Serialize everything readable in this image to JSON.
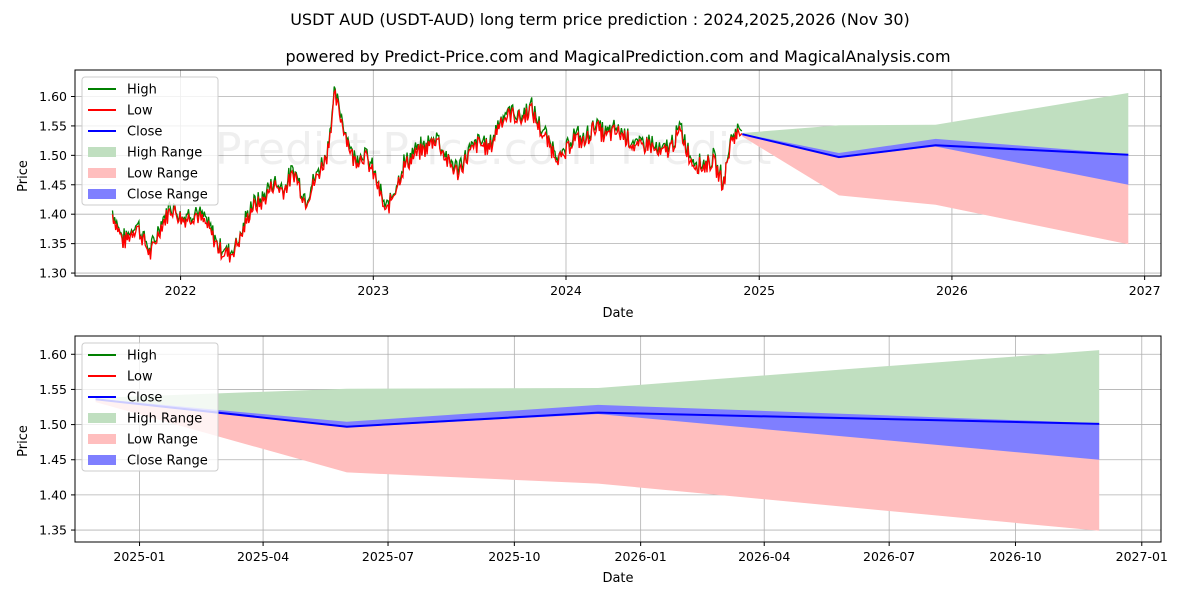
{
  "page": {
    "title": "USDT AUD (USDT-AUD) long term price prediction : 2024,2025,2026 (Nov 30)",
    "subtitle": "powered by Predict-Price.com and MagicalPrediction.com and MagicalAnalysis.com",
    "watermark": "Predict-Price.com"
  },
  "colors": {
    "high": "#008000",
    "low": "#ff0000",
    "close": "#0000ff",
    "high_range": "#c0dfc0",
    "low_range": "#ffbebe",
    "close_range": "#7f7fff"
  },
  "chart_data": [
    {
      "type": "line",
      "panel": "top",
      "title": "USDT AUD (USDT-AUD) long term price prediction : 2024,2025,2026 (Nov 30)",
      "xlabel": "Date",
      "ylabel": "Price",
      "xlim": [
        "2021-06-15",
        "2027-02-01"
      ],
      "ylim": [
        1.295,
        1.645
      ],
      "xticks": [
        "2022",
        "2023",
        "2024",
        "2025",
        "2026",
        "2027"
      ],
      "yticks": [
        "1.30",
        "1.35",
        "1.40",
        "1.45",
        "1.50",
        "1.55",
        "1.60"
      ],
      "grid": true,
      "legend_position": "top-left",
      "legend": [
        "High",
        "Low",
        "Close",
        "High Range",
        "Low Range",
        "Close Range"
      ],
      "history_keypoints": {
        "dates": [
          "2021-08-25",
          "2021-09-15",
          "2021-10-10",
          "2021-11-05",
          "2021-11-25",
          "2021-12-15",
          "2022-01-05",
          "2022-01-30",
          "2022-02-20",
          "2022-03-15",
          "2022-04-05",
          "2022-04-25",
          "2022-05-15",
          "2022-06-05",
          "2022-06-25",
          "2022-07-15",
          "2022-08-05",
          "2022-08-25",
          "2022-09-15",
          "2022-10-05",
          "2022-10-20",
          "2022-11-05",
          "2022-11-25",
          "2022-12-15",
          "2023-01-05",
          "2023-01-25",
          "2023-02-10",
          "2023-02-28",
          "2023-03-20",
          "2023-04-10",
          "2023-05-01",
          "2023-05-20",
          "2023-06-10",
          "2023-06-30",
          "2023-07-20",
          "2023-08-10",
          "2023-08-30",
          "2023-09-20",
          "2023-10-10",
          "2023-10-25",
          "2023-11-15",
          "2023-12-05",
          "2023-12-25",
          "2024-01-15",
          "2024-02-05",
          "2024-02-25",
          "2024-03-15",
          "2024-04-05",
          "2024-04-25",
          "2024-05-15",
          "2024-06-05",
          "2024-06-25",
          "2024-07-15",
          "2024-08-05",
          "2024-08-25",
          "2024-09-15",
          "2024-10-05",
          "2024-10-25",
          "2024-11-10",
          "2024-11-30"
        ],
        "values": [
          1.4,
          1.35,
          1.38,
          1.33,
          1.38,
          1.41,
          1.39,
          1.4,
          1.38,
          1.34,
          1.33,
          1.36,
          1.41,
          1.42,
          1.45,
          1.44,
          1.47,
          1.42,
          1.46,
          1.5,
          1.6,
          1.55,
          1.49,
          1.5,
          1.46,
          1.4,
          1.44,
          1.48,
          1.5,
          1.51,
          1.53,
          1.49,
          1.47,
          1.5,
          1.52,
          1.51,
          1.56,
          1.57,
          1.56,
          1.58,
          1.54,
          1.51,
          1.49,
          1.53,
          1.52,
          1.55,
          1.53,
          1.54,
          1.53,
          1.51,
          1.52,
          1.5,
          1.51,
          1.54,
          1.49,
          1.48,
          1.49,
          1.45,
          1.53,
          1.54
        ]
      },
      "forecast": {
        "dates": [
          "2024-11-30",
          "2025-06-01",
          "2025-12-01",
          "2026-12-01"
        ],
        "close": [
          1.536,
          1.497,
          1.517,
          1.501
        ],
        "high_range_upper": [
          1.538,
          1.551,
          1.552,
          1.606
        ],
        "low_range_lower": [
          1.532,
          1.432,
          1.416,
          1.349
        ],
        "close_range_upper": [
          1.537,
          1.504,
          1.528,
          1.502
        ],
        "close_range_lower": [
          1.535,
          1.496,
          1.515,
          1.45
        ]
      }
    },
    {
      "type": "line",
      "panel": "bottom",
      "xlabel": "Date",
      "ylabel": "Price",
      "xlim": [
        "2024-11-15",
        "2027-01-15"
      ],
      "ylim": [
        1.333,
        1.626
      ],
      "xticks": [
        "2025-01",
        "2025-04",
        "2025-07",
        "2025-10",
        "2026-01",
        "2026-04",
        "2026-07",
        "2026-10",
        "2027-01"
      ],
      "yticks": [
        "1.35",
        "1.40",
        "1.45",
        "1.50",
        "1.55",
        "1.60"
      ],
      "grid": true,
      "legend_position": "top-left",
      "legend": [
        "High",
        "Low",
        "Close",
        "High Range",
        "Low Range",
        "Close Range"
      ]
    }
  ]
}
